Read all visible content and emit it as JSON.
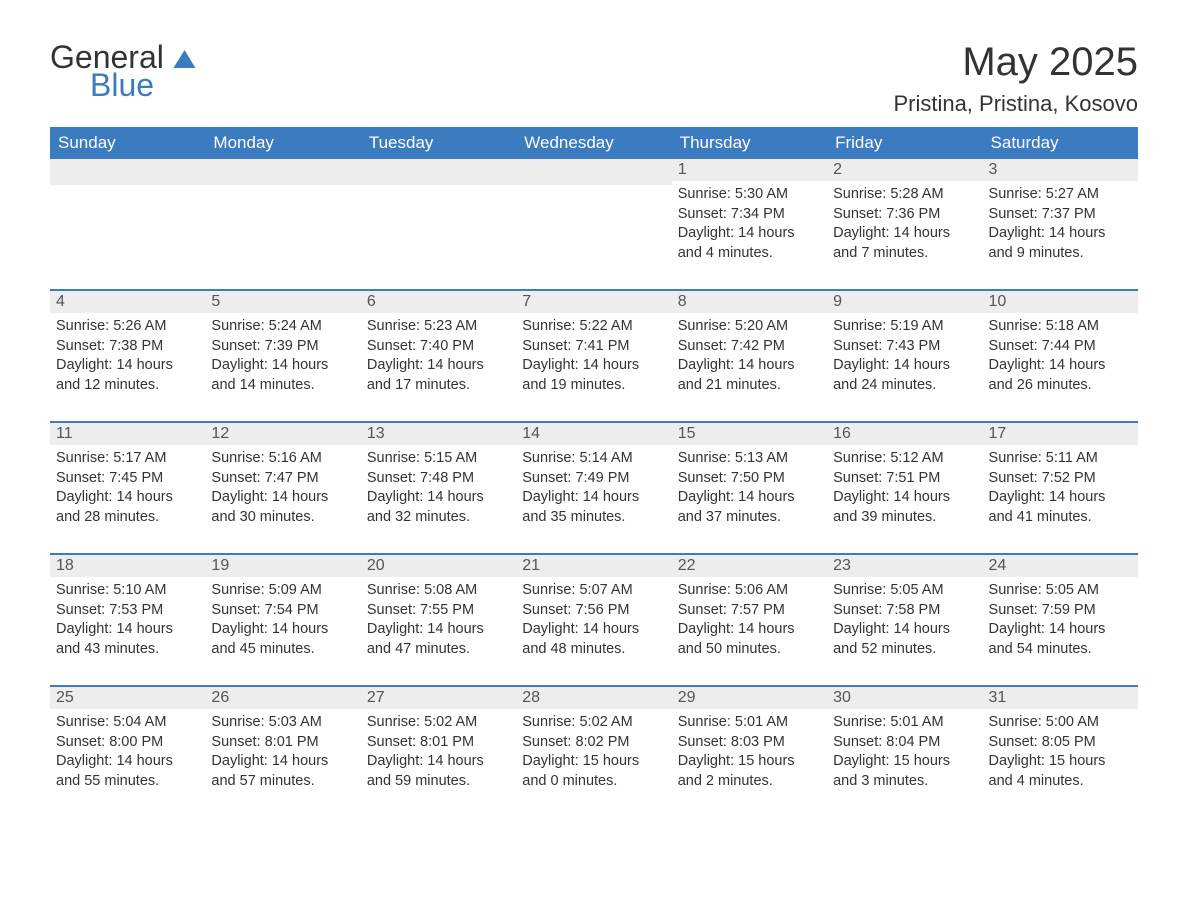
{
  "logo": {
    "line1": "General",
    "line2": "Blue"
  },
  "title": "May 2025",
  "location": "Pristina, Pristina, Kosovo",
  "colors": {
    "header_bg": "#3b7bbf",
    "header_text": "#ffffff",
    "date_bg": "#ededed",
    "body_text": "#333333",
    "rule": "#3b7bbf"
  },
  "weekdays": [
    "Sunday",
    "Monday",
    "Tuesday",
    "Wednesday",
    "Thursday",
    "Friday",
    "Saturday"
  ],
  "weeks": [
    [
      null,
      null,
      null,
      null,
      {
        "n": "1",
        "sunrise": "Sunrise: 5:30 AM",
        "sunset": "Sunset: 7:34 PM",
        "day1": "Daylight: 14 hours",
        "day2": "and 4 minutes."
      },
      {
        "n": "2",
        "sunrise": "Sunrise: 5:28 AM",
        "sunset": "Sunset: 7:36 PM",
        "day1": "Daylight: 14 hours",
        "day2": "and 7 minutes."
      },
      {
        "n": "3",
        "sunrise": "Sunrise: 5:27 AM",
        "sunset": "Sunset: 7:37 PM",
        "day1": "Daylight: 14 hours",
        "day2": "and 9 minutes."
      }
    ],
    [
      {
        "n": "4",
        "sunrise": "Sunrise: 5:26 AM",
        "sunset": "Sunset: 7:38 PM",
        "day1": "Daylight: 14 hours",
        "day2": "and 12 minutes."
      },
      {
        "n": "5",
        "sunrise": "Sunrise: 5:24 AM",
        "sunset": "Sunset: 7:39 PM",
        "day1": "Daylight: 14 hours",
        "day2": "and 14 minutes."
      },
      {
        "n": "6",
        "sunrise": "Sunrise: 5:23 AM",
        "sunset": "Sunset: 7:40 PM",
        "day1": "Daylight: 14 hours",
        "day2": "and 17 minutes."
      },
      {
        "n": "7",
        "sunrise": "Sunrise: 5:22 AM",
        "sunset": "Sunset: 7:41 PM",
        "day1": "Daylight: 14 hours",
        "day2": "and 19 minutes."
      },
      {
        "n": "8",
        "sunrise": "Sunrise: 5:20 AM",
        "sunset": "Sunset: 7:42 PM",
        "day1": "Daylight: 14 hours",
        "day2": "and 21 minutes."
      },
      {
        "n": "9",
        "sunrise": "Sunrise: 5:19 AM",
        "sunset": "Sunset: 7:43 PM",
        "day1": "Daylight: 14 hours",
        "day2": "and 24 minutes."
      },
      {
        "n": "10",
        "sunrise": "Sunrise: 5:18 AM",
        "sunset": "Sunset: 7:44 PM",
        "day1": "Daylight: 14 hours",
        "day2": "and 26 minutes."
      }
    ],
    [
      {
        "n": "11",
        "sunrise": "Sunrise: 5:17 AM",
        "sunset": "Sunset: 7:45 PM",
        "day1": "Daylight: 14 hours",
        "day2": "and 28 minutes."
      },
      {
        "n": "12",
        "sunrise": "Sunrise: 5:16 AM",
        "sunset": "Sunset: 7:47 PM",
        "day1": "Daylight: 14 hours",
        "day2": "and 30 minutes."
      },
      {
        "n": "13",
        "sunrise": "Sunrise: 5:15 AM",
        "sunset": "Sunset: 7:48 PM",
        "day1": "Daylight: 14 hours",
        "day2": "and 32 minutes."
      },
      {
        "n": "14",
        "sunrise": "Sunrise: 5:14 AM",
        "sunset": "Sunset: 7:49 PM",
        "day1": "Daylight: 14 hours",
        "day2": "and 35 minutes."
      },
      {
        "n": "15",
        "sunrise": "Sunrise: 5:13 AM",
        "sunset": "Sunset: 7:50 PM",
        "day1": "Daylight: 14 hours",
        "day2": "and 37 minutes."
      },
      {
        "n": "16",
        "sunrise": "Sunrise: 5:12 AM",
        "sunset": "Sunset: 7:51 PM",
        "day1": "Daylight: 14 hours",
        "day2": "and 39 minutes."
      },
      {
        "n": "17",
        "sunrise": "Sunrise: 5:11 AM",
        "sunset": "Sunset: 7:52 PM",
        "day1": "Daylight: 14 hours",
        "day2": "and 41 minutes."
      }
    ],
    [
      {
        "n": "18",
        "sunrise": "Sunrise: 5:10 AM",
        "sunset": "Sunset: 7:53 PM",
        "day1": "Daylight: 14 hours",
        "day2": "and 43 minutes."
      },
      {
        "n": "19",
        "sunrise": "Sunrise: 5:09 AM",
        "sunset": "Sunset: 7:54 PM",
        "day1": "Daylight: 14 hours",
        "day2": "and 45 minutes."
      },
      {
        "n": "20",
        "sunrise": "Sunrise: 5:08 AM",
        "sunset": "Sunset: 7:55 PM",
        "day1": "Daylight: 14 hours",
        "day2": "and 47 minutes."
      },
      {
        "n": "21",
        "sunrise": "Sunrise: 5:07 AM",
        "sunset": "Sunset: 7:56 PM",
        "day1": "Daylight: 14 hours",
        "day2": "and 48 minutes."
      },
      {
        "n": "22",
        "sunrise": "Sunrise: 5:06 AM",
        "sunset": "Sunset: 7:57 PM",
        "day1": "Daylight: 14 hours",
        "day2": "and 50 minutes."
      },
      {
        "n": "23",
        "sunrise": "Sunrise: 5:05 AM",
        "sunset": "Sunset: 7:58 PM",
        "day1": "Daylight: 14 hours",
        "day2": "and 52 minutes."
      },
      {
        "n": "24",
        "sunrise": "Sunrise: 5:05 AM",
        "sunset": "Sunset: 7:59 PM",
        "day1": "Daylight: 14 hours",
        "day2": "and 54 minutes."
      }
    ],
    [
      {
        "n": "25",
        "sunrise": "Sunrise: 5:04 AM",
        "sunset": "Sunset: 8:00 PM",
        "day1": "Daylight: 14 hours",
        "day2": "and 55 minutes."
      },
      {
        "n": "26",
        "sunrise": "Sunrise: 5:03 AM",
        "sunset": "Sunset: 8:01 PM",
        "day1": "Daylight: 14 hours",
        "day2": "and 57 minutes."
      },
      {
        "n": "27",
        "sunrise": "Sunrise: 5:02 AM",
        "sunset": "Sunset: 8:01 PM",
        "day1": "Daylight: 14 hours",
        "day2": "and 59 minutes."
      },
      {
        "n": "28",
        "sunrise": "Sunrise: 5:02 AM",
        "sunset": "Sunset: 8:02 PM",
        "day1": "Daylight: 15 hours",
        "day2": "and 0 minutes."
      },
      {
        "n": "29",
        "sunrise": "Sunrise: 5:01 AM",
        "sunset": "Sunset: 8:03 PM",
        "day1": "Daylight: 15 hours",
        "day2": "and 2 minutes."
      },
      {
        "n": "30",
        "sunrise": "Sunrise: 5:01 AM",
        "sunset": "Sunset: 8:04 PM",
        "day1": "Daylight: 15 hours",
        "day2": "and 3 minutes."
      },
      {
        "n": "31",
        "sunrise": "Sunrise: 5:00 AM",
        "sunset": "Sunset: 8:05 PM",
        "day1": "Daylight: 15 hours",
        "day2": "and 4 minutes."
      }
    ]
  ]
}
